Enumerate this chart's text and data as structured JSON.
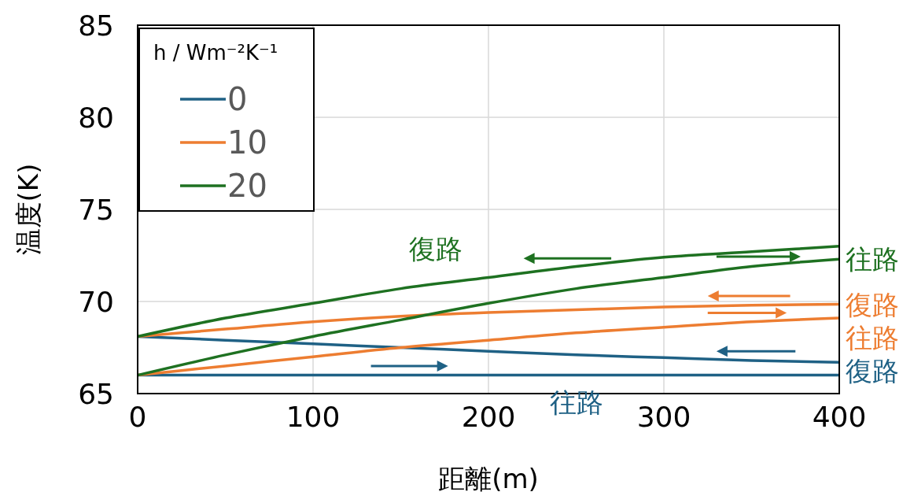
{
  "chart_data": {
    "type": "line",
    "xlabel": "距離(m)",
    "ylabel": "温度(K)",
    "legend_title": "h / Wm⁻²K⁻¹",
    "x": [
      0,
      50,
      100,
      150,
      200,
      250,
      300,
      350,
      400
    ],
    "series": [
      {
        "name": "0",
        "color": "#1f6185",
        "values": [
          66,
          66,
          66,
          66,
          66,
          66,
          66,
          66,
          66
        ]
      },
      {
        "color": "#1f6185",
        "values": [
          68.1,
          67.9,
          67.7,
          67.5,
          67.3,
          67.1,
          66.95,
          66.8,
          66.7
        ]
      },
      {
        "name": "10",
        "color": "#ed7d31",
        "values": [
          66,
          66.5,
          67.0,
          67.5,
          67.9,
          68.3,
          68.6,
          68.9,
          69.1
        ]
      },
      {
        "color": "#ed7d31",
        "values": [
          68.1,
          68.5,
          68.9,
          69.2,
          69.4,
          69.55,
          69.7,
          69.8,
          69.85
        ]
      },
      {
        "name": "20",
        "color": "#1e7121",
        "values": [
          66,
          67.1,
          68.1,
          69.0,
          69.9,
          70.7,
          71.3,
          71.9,
          72.3
        ]
      },
      {
        "color": "#1e7121",
        "values": [
          68.1,
          69.1,
          69.9,
          70.7,
          71.3,
          71.9,
          72.4,
          72.7,
          73.0
        ]
      }
    ],
    "annotations": [
      {
        "text": "往路",
        "x": 250,
        "y": 66
      },
      {
        "text": "復路",
        "x": 400,
        "y": 66.7
      },
      {
        "text": "往路",
        "x": 400,
        "y": 69.1
      },
      {
        "text": "復路",
        "x": 400,
        "y": 69.85
      },
      {
        "text": "往路",
        "x": 400,
        "y": 72.3
      },
      {
        "text": "復路",
        "x": 170,
        "y": 71.0
      }
    ],
    "xlim": [
      0,
      400
    ],
    "xticks": [
      0,
      100,
      200,
      300,
      400
    ],
    "ylim": [
      65,
      85
    ],
    "yticks": [
      65,
      70,
      75,
      80,
      85
    ],
    "grid": true,
    "legend": "top left",
    "marker": "none",
    "line_style": "solid"
  }
}
